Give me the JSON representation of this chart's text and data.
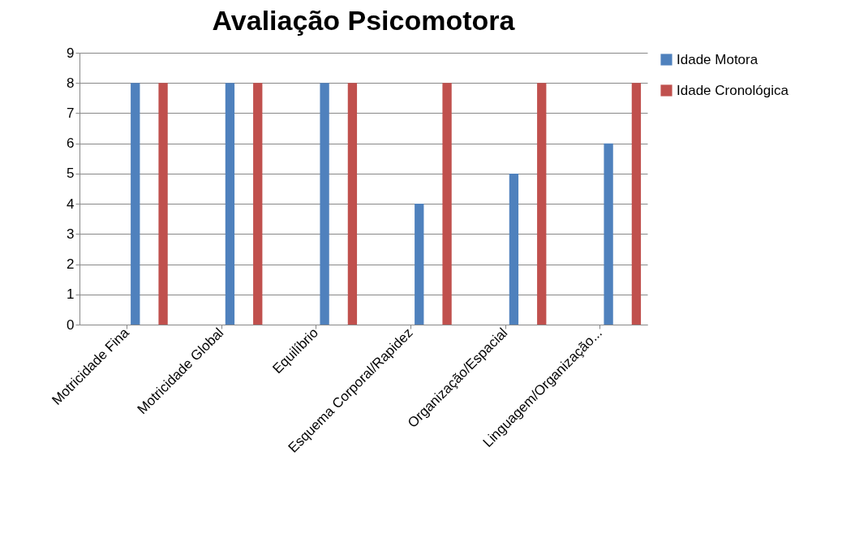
{
  "chart_data": {
    "type": "bar",
    "title": "Avaliação Psicomotora",
    "categories": [
      "Motricidade Fina",
      "Motricidade Global",
      "Equilíbrio",
      "Esquema Corporal/Rapidez",
      "Organização/Espacial",
      "Linguagem/Organização..."
    ],
    "series": [
      {
        "name": "Idade Motora",
        "color": "#4f81bd",
        "values": [
          8,
          8,
          8,
          4,
          5,
          6
        ]
      },
      {
        "name": "Idade Cronológica",
        "color": "#c0504d",
        "values": [
          8,
          8,
          8,
          8,
          8,
          8
        ]
      }
    ],
    "ylim": [
      0,
      9
    ],
    "yticks": [
      0,
      1,
      2,
      3,
      4,
      5,
      6,
      7,
      8,
      9
    ],
    "grid": "y",
    "legend": "right"
  }
}
